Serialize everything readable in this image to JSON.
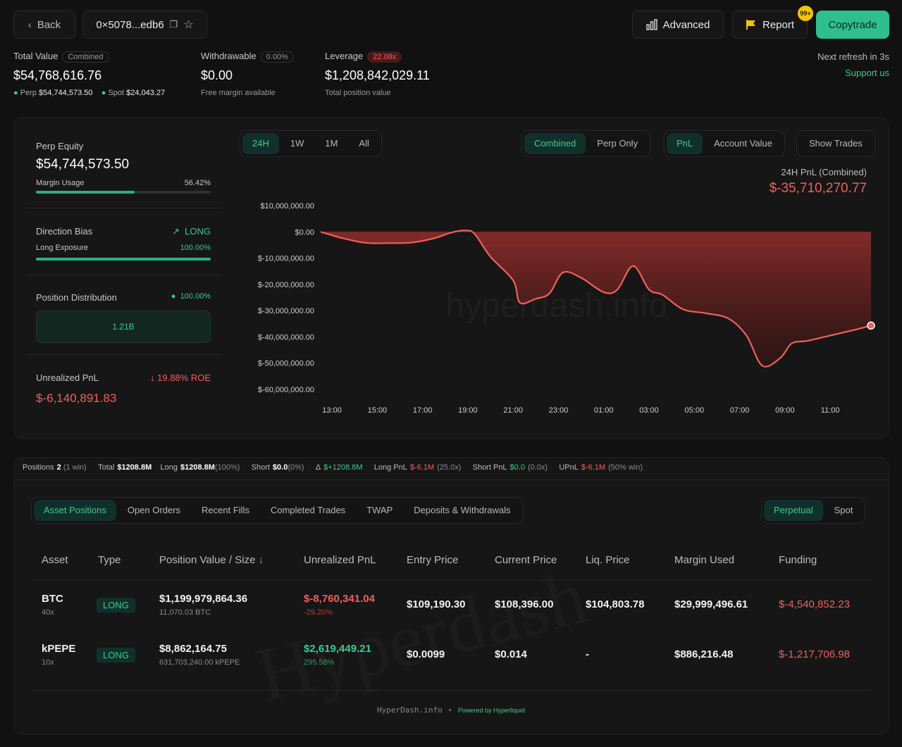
{
  "header": {
    "back_label": "Back",
    "address": "0×5078...edb6",
    "advanced_label": "Advanced",
    "report_label": "Report",
    "notif_badge": "99+",
    "copytrade_label": "Copytrade",
    "refresh_text": "Next refresh in 3s",
    "support_link": "Support us"
  },
  "stats": {
    "total_value_label": "Total Value",
    "total_value_pill": "Combined",
    "total_value": "$54,768,616.76",
    "perp_label": "Perp",
    "perp_value": "$54,744,573.50",
    "spot_label": "Spot",
    "spot_value": "$24,043.27",
    "withdrawable_label": "Withdrawable",
    "withdrawable_pill": "0.00%",
    "withdrawable_value": "$0.00",
    "withdrawable_sub": "Free margin available",
    "leverage_label": "Leverage",
    "leverage_pill": "22.08x",
    "leverage_value": "$1,208,842,029.11",
    "leverage_sub": "Total position value"
  },
  "left": {
    "perp_equity_label": "Perp Equity",
    "perp_equity_value": "$54,744,573.50",
    "margin_usage_label": "Margin Usage",
    "margin_usage_value": "56.42%",
    "margin_usage_fraction": 0.5642,
    "direction_bias_label": "Direction Bias",
    "direction_bias_value": "LONG",
    "long_exposure_label": "Long Exposure",
    "long_exposure_value": "100.00%",
    "long_exposure_fraction": 1.0,
    "position_distribution_label": "Position Distribution",
    "position_distribution_value": "100.00%",
    "distribution_bar_label": "1.21B",
    "unrealized_pnl_label": "Unrealized PnL",
    "unrealized_roe": "19.88% ROE",
    "unrealized_pnl_value": "$-6,140,891.83"
  },
  "chart_controls": {
    "range_options": [
      "24H",
      "1W",
      "1M",
      "All"
    ],
    "range_active": "24H",
    "mode_options": [
      "Combined",
      "Perp Only"
    ],
    "mode_active": "Combined",
    "metric_options": [
      "PnL",
      "Account Value"
    ],
    "metric_active": "PnL",
    "show_trades_label": "Show Trades",
    "pnl_label": "24H PnL (Combined)",
    "pnl_value": "$-35,710,270.77",
    "watermark": "hyperdash.info"
  },
  "chart_data": {
    "type": "area",
    "title": "",
    "xlabel": "",
    "ylabel": "",
    "ylim": [
      -60000000,
      10000000
    ],
    "yticks": [
      10000000,
      0,
      -10000000,
      -20000000,
      -30000000,
      -40000000,
      -50000000,
      -60000000
    ],
    "ytick_labels": [
      "$10,000,000.00",
      "$0.00",
      "$-10,000,000.00",
      "$-20,000,000.00",
      "$-30,000,000.00",
      "$-40,000,000.00",
      "$-50,000,000.00",
      "$-60,000,000.00"
    ],
    "xticks": [
      "13:00",
      "15:00",
      "17:00",
      "19:00",
      "21:00",
      "23:00",
      "01:00",
      "03:00",
      "05:00",
      "07:00",
      "09:00",
      "11:00"
    ],
    "xlim": [
      12.5,
      36.8
    ],
    "series": [
      {
        "color": "#f0605a",
        "x": [
          12.5,
          13.5,
          14.5,
          15.5,
          16.5,
          17.5,
          18.3,
          18.9,
          19.3,
          20.0,
          21.0,
          21.3,
          22.0,
          22.6,
          23.2,
          24.0,
          25.0,
          25.6,
          26.3,
          27.0,
          27.6,
          28.5,
          29.5,
          30.5,
          31.3,
          32.0,
          32.8,
          33.3,
          34.0,
          35.0,
          36.0,
          36.8
        ],
        "y": [
          0,
          -2500000,
          -4200000,
          -4300000,
          -4100000,
          -2500000,
          -200000,
          500000,
          -800000,
          -9500000,
          -18500000,
          -27000000,
          -25500000,
          -23500000,
          -15500000,
          -17500000,
          -23000000,
          -22000000,
          -13000000,
          -22000000,
          -24000000,
          -29500000,
          -31000000,
          -33000000,
          -39500000,
          -51000000,
          -48000000,
          -42500000,
          -41500000,
          -39500000,
          -37500000,
          -35710270
        ]
      }
    ]
  },
  "summary": {
    "positions_label": "Positions",
    "positions_value": "2",
    "positions_note": "(1 win)",
    "total_label": "Total",
    "total_value": "$1208.8M",
    "long_label": "Long",
    "long_value": "$1208.8M",
    "long_note": "(100%)",
    "short_label": "Short",
    "short_value": "$0.0",
    "short_note": "(0%)",
    "delta_label": "Δ",
    "delta_value": "$+1208.8M",
    "long_pnl_label": "Long PnL",
    "long_pnl_value": "$-6.1M",
    "long_pnl_note": "(25.0x)",
    "short_pnl_label": "Short PnL",
    "short_pnl_value": "$0.0",
    "short_pnl_note": "(0.0x)",
    "upnl_label": "UPnL",
    "upnl_value": "$-6.1M",
    "upnl_note": "(50% win)"
  },
  "tabs": {
    "items": [
      "Asset Positions",
      "Open Orders",
      "Recent Fills",
      "Completed Trades",
      "TWAP",
      "Deposits & Withdrawals"
    ],
    "active": "Asset Positions",
    "market_items": [
      "Perpetual",
      "Spot"
    ],
    "market_active": "Perpetual"
  },
  "table": {
    "headers": [
      "Asset",
      "Type",
      "Position Value / Size",
      "Unrealized PnL",
      "Entry Price",
      "Current Price",
      "Liq. Price",
      "Margin Used",
      "Funding"
    ],
    "rows": [
      {
        "asset": "BTC",
        "leverage": "40x",
        "type": "LONG",
        "position_value": "$1,199,979,864.36",
        "size": "11,070.03 BTC",
        "upnl": "$-8,760,341.04",
        "upnl_pct": "-29.20%",
        "entry": "$109,190.30",
        "current": "$108,396.00",
        "liq": "$104,803.78",
        "margin": "$29,999,496.61",
        "funding": "$-4,540,852.23"
      },
      {
        "asset": "kPEPE",
        "leverage": "10x",
        "type": "LONG",
        "position_value": "$8,862,164.75",
        "size": "631,703,240.00 kPEPE",
        "upnl": "$2,619,449.21",
        "upnl_pct": "295.58%",
        "entry": "$0.0099",
        "current": "$0.014",
        "liq": "-",
        "margin": "$886,216.48",
        "funding": "$-1,217,706.98"
      }
    ],
    "watermark": "Hyperdash"
  },
  "footer": {
    "site": "HyperDash.info",
    "separator": "•",
    "powered": "Powered by Hyperliquid"
  }
}
